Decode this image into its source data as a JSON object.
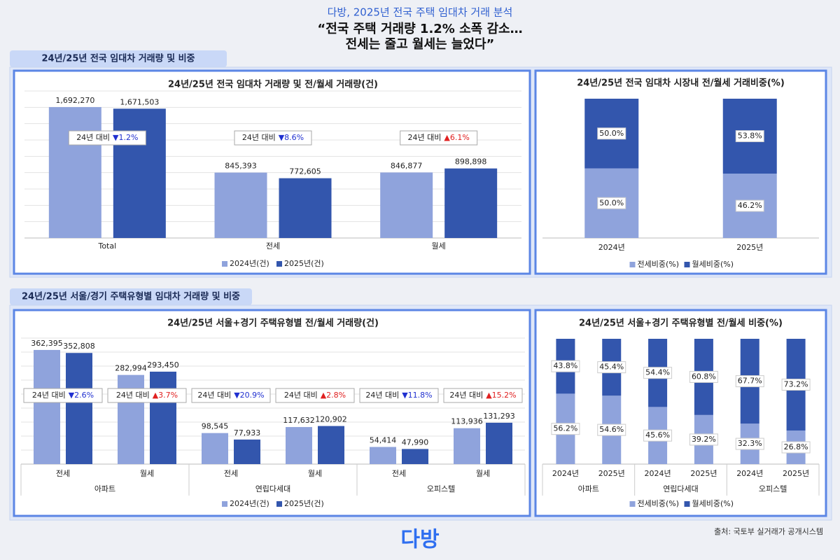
{
  "header": {
    "subtitle": "다방, 2025년 전국 주택 임대차 거래 분석",
    "headline": [
      "“전국 주택 거래량 1.2% 소폭 감소…",
      "전세는 줄고 월세는 늘었다”"
    ]
  },
  "sections": [
    "24년/25년 전국 임대차 거래량 및 비중",
    "24년/25년  서울/경기 주택유형별 임대차 거래량 및 비중"
  ],
  "chart_data": [
    {
      "type": "bar",
      "title": "24년/25년 전국 임대차 거래량 및 전/월세 거래량(건)",
      "categories": [
        "Total",
        "전세",
        "월세"
      ],
      "ylim": [
        0,
        1900000
      ],
      "grid": true,
      "series": [
        {
          "name": "2024년(건)",
          "color": "#8fa3dc",
          "values": [
            1692270,
            845393,
            846877
          ],
          "value_labels": [
            "1,692,270",
            "845,393",
            "846,877"
          ]
        },
        {
          "name": "2025년(건)",
          "color": "#3356ad",
          "values": [
            1671503,
            772605,
            898898
          ],
          "value_labels": [
            "1,671,503",
            "772,605",
            "898,898"
          ]
        }
      ],
      "annotations": [
        {
          "text": "24년 대비",
          "change": "▼1.2%"
        },
        {
          "text": "24년 대비",
          "change": "▼8.6%"
        },
        {
          "text": "24년 대비",
          "change": "▲6.1%"
        }
      ]
    },
    {
      "type": "stacked_bar",
      "title": "24년/25년 전국 임대차 시장내 전/월세 거래비중(%)",
      "categories": [
        "2024년",
        "2025년"
      ],
      "ylim": [
        0,
        100
      ],
      "series": [
        {
          "name": "전세비중(%)",
          "color": "#8fa3dc",
          "values": [
            50.0,
            46.2
          ],
          "value_labels": [
            "50.0%",
            "46.2%"
          ]
        },
        {
          "name": "월세비중(%)",
          "color": "#3356ad",
          "values": [
            50.0,
            53.8
          ],
          "value_labels": [
            "50.0%",
            "53.8%"
          ]
        }
      ]
    },
    {
      "type": "bar",
      "title": "24년/25년 서울+경기 주택유형별 전/월세 거래량(건)",
      "categories": [
        "전세",
        "월세",
        "전세",
        "월세",
        "전세",
        "월세"
      ],
      "groups": [
        "아파트",
        "연립다세대",
        "오피스텔"
      ],
      "ylim": [
        0,
        400000
      ],
      "grid": true,
      "series": [
        {
          "name": "2024년(건)",
          "color": "#8fa3dc",
          "values": [
            362395,
            282994,
            98545,
            117632,
            54414,
            113936
          ],
          "value_labels": [
            "362,395",
            "282,994",
            "98,545",
            "117,632",
            "54,414",
            "113,936"
          ]
        },
        {
          "name": "2025년(건)",
          "color": "#3356ad",
          "values": [
            352808,
            293450,
            77933,
            120902,
            47990,
            131293
          ],
          "value_labels": [
            "352,808",
            "293,450",
            "77,933",
            "120,902",
            "47,990",
            "131,293"
          ]
        }
      ],
      "annotations": [
        {
          "text": "24년 대비",
          "change": "▼2.6%"
        },
        {
          "text": "24년 대비",
          "change": "▲3.7%"
        },
        {
          "text": "24년 대비",
          "change": "▼20.9%"
        },
        {
          "text": "24년 대비",
          "change": "▲2.8%"
        },
        {
          "text": "24년 대비",
          "change": "▼11.8%"
        },
        {
          "text": "24년 대비",
          "change": "▲15.2%"
        }
      ]
    },
    {
      "type": "stacked_bar",
      "title": "24년/25년 서울+경기 주택유형별 전/월세 비중(%)",
      "categories": [
        "2024년",
        "2025년",
        "2024년",
        "2025년",
        "2024년",
        "2025년"
      ],
      "groups": [
        "아파트",
        "연립다세대",
        "오피스텔"
      ],
      "ylim": [
        0,
        100
      ],
      "series": [
        {
          "name": "전세비중(%)",
          "color": "#8fa3dc",
          "values": [
            56.2,
            54.6,
            45.6,
            39.2,
            32.3,
            26.8
          ],
          "value_labels": [
            "56.2%",
            "54.6%",
            "45.6%",
            "39.2%",
            "32.3%",
            "26.8%"
          ]
        },
        {
          "name": "월세비중(%)",
          "color": "#3356ad",
          "values": [
            43.8,
            45.4,
            54.4,
            60.8,
            67.7,
            73.2
          ],
          "value_labels": [
            "43.8%",
            "45.4%",
            "54.4%",
            "60.8%",
            "67.7%",
            "73.2%"
          ]
        }
      ]
    }
  ],
  "footer": {
    "logo": "다방",
    "source": "출처: 국토부 실거래가 공개시스템"
  }
}
